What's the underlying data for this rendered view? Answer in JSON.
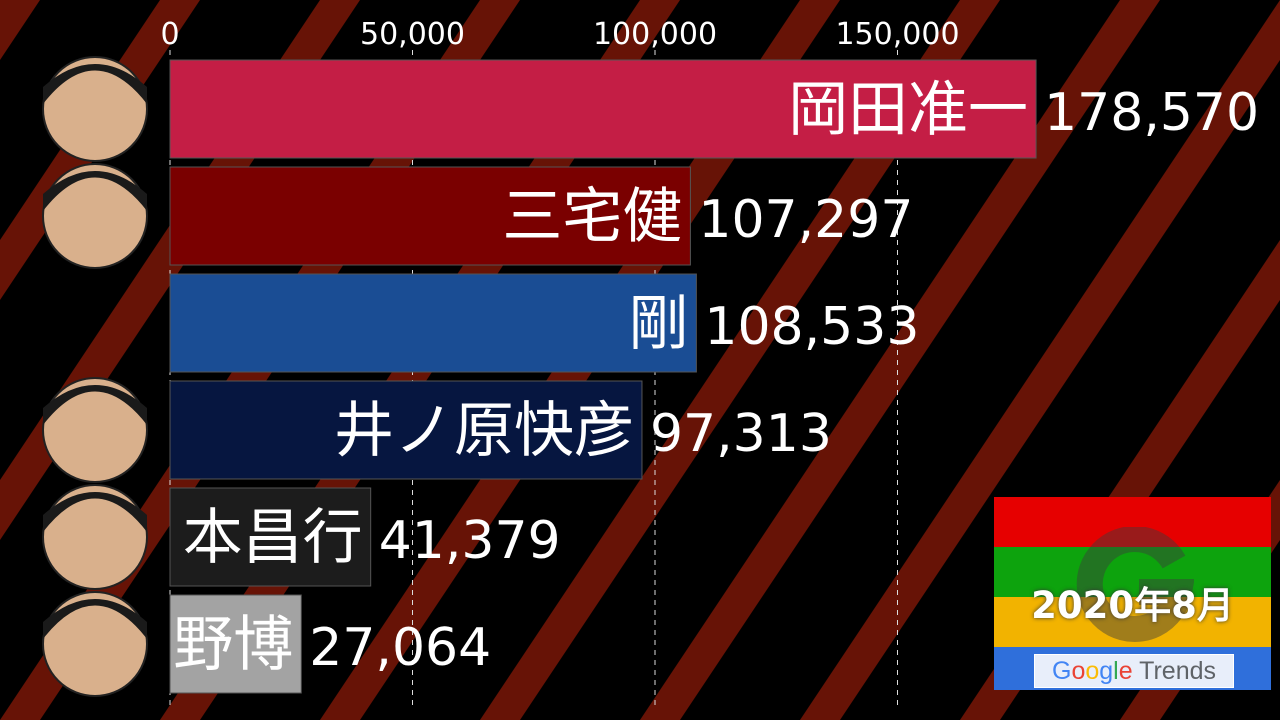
{
  "chart_data": {
    "type": "bar",
    "orientation": "horizontal",
    "title": "",
    "xlim": [
      0,
      180000
    ],
    "xticks": [
      "0",
      "50,000",
      "100,000",
      "150,000"
    ],
    "xtick_values": [
      0,
      50000,
      100000,
      150000
    ],
    "grid": true,
    "series": [
      {
        "label": "岡田准一",
        "value": 178570,
        "value_label": "178,570",
        "color": "#c41e45"
      },
      {
        "label": "三宅健",
        "value": 107297,
        "value_label": "107,297",
        "color": "#7a0000"
      },
      {
        "label": "剛",
        "value": 108533,
        "value_label": "108,533",
        "color": "#1a4d94"
      },
      {
        "label": "井ノ原快彦",
        "value": 97313,
        "value_label": "97,313",
        "color": "#061640"
      },
      {
        "label": "本昌行",
        "value": 41379,
        "value_label": "41,379",
        "color": "#1c1c1c"
      },
      {
        "label": "野博",
        "value": 27064,
        "value_label": "27,064",
        "color": "#a3a3a3"
      }
    ]
  },
  "period": "2020年8月",
  "source": {
    "google": "Google",
    "trends": "Trends"
  },
  "colors": {
    "red": "#e60000",
    "green": "#0da30d",
    "yellow": "#f2b300",
    "blue": "#2f6fdb"
  }
}
